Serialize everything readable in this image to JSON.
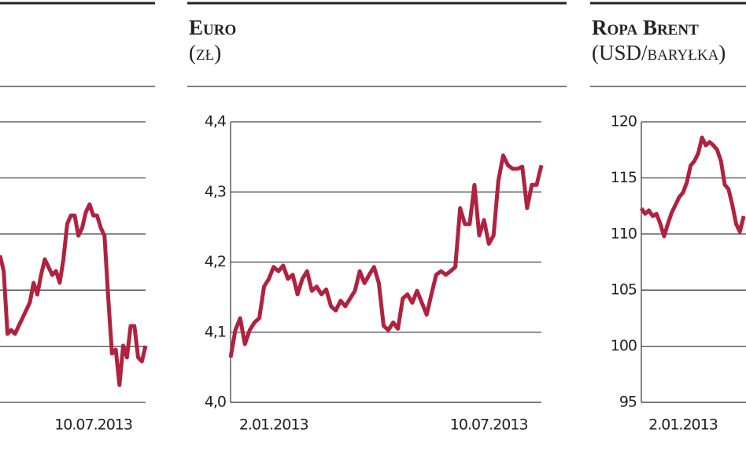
{
  "chart_data": [
    {
      "type": "line",
      "color": "#b0223f",
      "ylim": [
        0,
        5
      ],
      "gridlines": [
        1,
        2,
        3,
        4,
        5
      ],
      "xlim": [
        0,
        39
      ],
      "xticks": [
        {
          "value": 25,
          "label": "10.07.2013"
        }
      ],
      "values": [
        2.62,
        2.34,
        1.22,
        1.29,
        1.22,
        1.36,
        1.5,
        1.64,
        1.78,
        2.13,
        1.92,
        2.27,
        2.55,
        2.41,
        2.27,
        2.34,
        2.13,
        2.55,
        3.18,
        3.33,
        3.33,
        2.97,
        3.11,
        3.39,
        3.53,
        3.33,
        3.33,
        3.11,
        2.97,
        1.85,
        0.87,
        0.94,
        0.31,
        1.01,
        0.8,
        1.36,
        1.36,
        0.8,
        0.73,
        1.01
      ]
    },
    {
      "type": "line",
      "title": "Euro",
      "subtitle": "(zł)",
      "color": "#b0223f",
      "ylim": [
        4.0,
        4.4
      ],
      "yticks": [
        {
          "value": 4.0,
          "label": "4,0"
        },
        {
          "value": 4.1,
          "label": "4,1"
        },
        {
          "value": 4.2,
          "label": "4,2"
        },
        {
          "value": 4.3,
          "label": "4,3"
        },
        {
          "value": 4.4,
          "label": "4,4"
        }
      ],
      "xlim": [
        0,
        65
      ],
      "xticks": [
        {
          "value": 9,
          "label": "2.01.2013"
        },
        {
          "value": 54,
          "label": "10.07.2013"
        }
      ],
      "values": [
        4.064,
        4.103,
        4.12,
        4.083,
        4.103,
        4.114,
        4.12,
        4.165,
        4.176,
        4.193,
        4.187,
        4.195,
        4.176,
        4.182,
        4.154,
        4.176,
        4.187,
        4.159,
        4.165,
        4.154,
        4.161,
        4.137,
        4.131,
        4.145,
        4.137,
        4.148,
        4.159,
        4.187,
        4.17,
        4.182,
        4.193,
        4.17,
        4.109,
        4.103,
        4.114,
        4.105,
        4.148,
        4.154,
        4.142,
        4.159,
        4.142,
        4.125,
        4.154,
        4.182,
        4.187,
        4.182,
        4.187,
        4.193,
        4.277,
        4.254,
        4.254,
        4.31,
        4.238,
        4.26,
        4.226,
        4.238,
        4.316,
        4.352,
        4.338,
        4.333,
        4.333,
        4.336,
        4.277,
        4.31,
        4.31,
        4.338
      ]
    },
    {
      "type": "line",
      "title": "Ropa Brent",
      "subtitle": "(USD/baryłka)",
      "color": "#b0223f",
      "ylim": [
        95,
        120
      ],
      "yticks": [
        95,
        100,
        105,
        110,
        115,
        120
      ],
      "xlim": [
        0,
        82
      ],
      "xticks": [
        {
          "value": 11,
          "label": "2.01.2013"
        }
      ],
      "values": [
        112.3,
        111.8,
        112.1,
        111.6,
        111.8,
        110.9,
        109.8,
        110.9,
        111.9,
        112.6,
        113.3,
        113.7,
        114.6,
        116.1,
        116.5,
        117.2,
        118.6,
        117.9,
        118.2,
        117.9,
        117.5,
        116.5,
        114.4,
        114.0,
        112.6,
        110.9,
        110.2,
        111.6
      ]
    }
  ]
}
